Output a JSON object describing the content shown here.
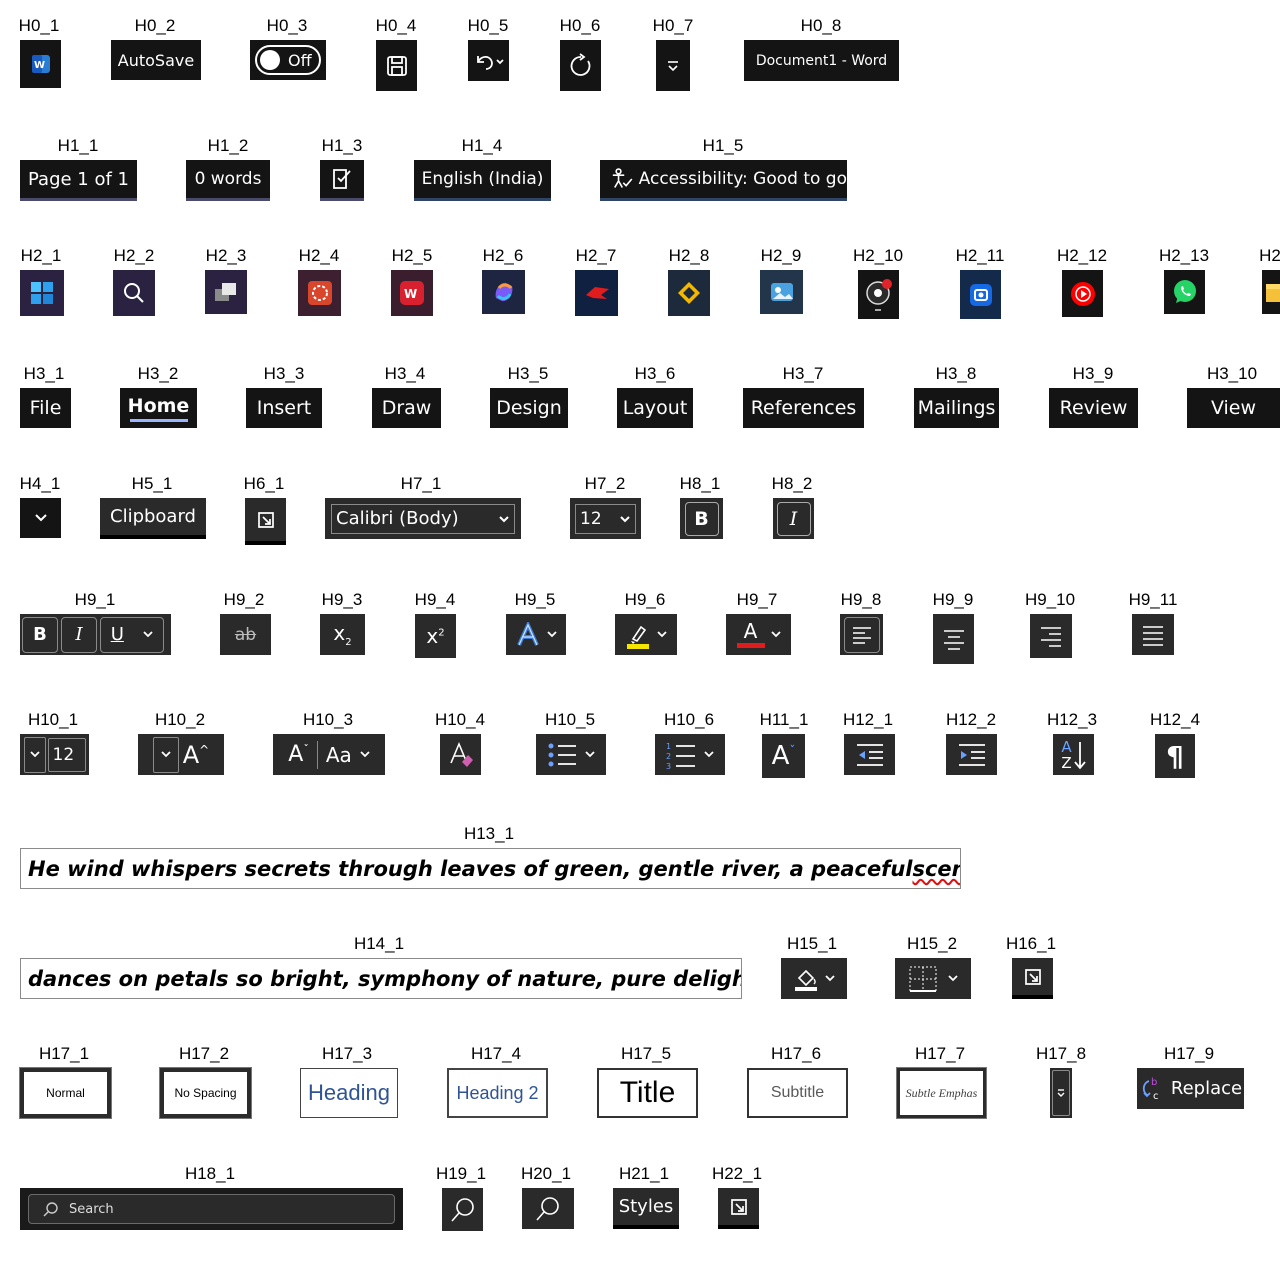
{
  "captions": {
    "H0_1": "H0_1",
    "H0_2": "H0_2",
    "H0_3": "H0_3",
    "H0_4": "H0_4",
    "H0_5": "H0_5",
    "H0_6": "H0_6",
    "H0_7": "H0_7",
    "H0_8": "H0_8",
    "H1_1": "H1_1",
    "H1_2": "H1_2",
    "H1_3": "H1_3",
    "H1_4": "H1_4",
    "H1_5": "H1_5",
    "H2_1": "H2_1",
    "H2_2": "H2_2",
    "H2_3": "H2_3",
    "H2_4": "H2_4",
    "H2_5": "H2_5",
    "H2_6": "H2_6",
    "H2_7": "H2_7",
    "H2_8": "H2_8",
    "H2_9": "H2_9",
    "H2_10": "H2_10",
    "H2_11": "H2_11",
    "H2_12": "H2_12",
    "H2_13": "H2_13",
    "H2_14": "H2",
    "H3_1": "H3_1",
    "H3_2": "H3_2",
    "H3_3": "H3_3",
    "H3_4": "H3_4",
    "H3_5": "H3_5",
    "H3_6": "H3_6",
    "H3_7": "H3_7",
    "H3_8": "H3_8",
    "H3_9": "H3_9",
    "H3_10": "H3_10",
    "H4_1": "H4_1",
    "H5_1": "H5_1",
    "H6_1": "H6_1",
    "H7_1": "H7_1",
    "H7_2": "H7_2",
    "H8_1": "H8_1",
    "H8_2": "H8_2",
    "H9_1": "H9_1",
    "H9_2": "H9_2",
    "H9_3": "H9_3",
    "H9_4": "H9_4",
    "H9_5": "H9_5",
    "H9_6": "H9_6",
    "H9_7": "H9_7",
    "H9_8": "H9_8",
    "H9_9": "H9_9",
    "H9_10": "H9_10",
    "H9_11": "H9_11",
    "H10_1": "H10_1",
    "H10_2": "H10_2",
    "H10_3": "H10_3",
    "H10_4": "H10_4",
    "H10_5": "H10_5",
    "H10_6": "H10_6",
    "H11_1": "H11_1",
    "H12_1": "H12_1",
    "H12_2": "H12_2",
    "H12_3": "H12_3",
    "H12_4": "H12_4",
    "H13_1": "H13_1",
    "H14_1": "H14_1",
    "H15_1": "H15_1",
    "H15_2": "H15_2",
    "H16_1": "H16_1",
    "H17_1": "H17_1",
    "H17_2": "H17_2",
    "H17_3": "H17_3",
    "H17_4": "H17_4",
    "H17_5": "H17_5",
    "H17_6": "H17_6",
    "H17_7": "H17_7",
    "H17_8": "H17_8",
    "H17_9": "H17_9",
    "H18_1": "H18_1",
    "H19_1": "H19_1",
    "H20_1": "H20_1",
    "H21_1": "H21_1",
    "H22_1": "H22_1"
  },
  "titlebar": {
    "autosave_label": "AutoSave",
    "toggle_state": "Off",
    "document_title": "Document1  -  Word"
  },
  "statusbar": {
    "page": "Page 1 of 1",
    "words": "0 words",
    "language": "English (India)",
    "accessibility": "Accessibility: Good to go"
  },
  "tabs": [
    "File",
    "Home",
    "Insert",
    "Draw",
    "Design",
    "Layout",
    "References",
    "Mailings",
    "Review",
    "View"
  ],
  "ribbon": {
    "clipboard_label": "Clipboard",
    "font_name": "Calibri (Body)",
    "font_size": "12",
    "font_size_small": "12",
    "bold_glyph": "B",
    "italic_glyph": "I",
    "underline_glyph": "U",
    "strike_glyph": "ab",
    "subscript_glyph": "x",
    "subscript_index": "2",
    "superscript_glyph": "x",
    "superscript_index": "2",
    "font_color_glyph": "A",
    "grow_glyph": "A",
    "case_glyph": "Aa",
    "pilcrow": "¶",
    "sort_a": "A",
    "sort_z": "Z"
  },
  "colors": {
    "highlight": "#f5e600",
    "font_color": "#e11c1c",
    "text_effect": "#3a7bd5",
    "accent_underline": "#9ab6ff"
  },
  "document": {
    "line1": "He wind whispers secrets through leaves of green, gentle river, a peaceful ",
    "line1_misspelled": "scene.unlight",
    "line2": "dances on petals so bright, symphony of nature, pure delight."
  },
  "styles": [
    "Normal",
    "No Spacing",
    "Heading",
    "Heading 2",
    "Title",
    "Subtitle",
    "Subtle Emphas"
  ],
  "replace_label": "Replace",
  "search_placeholder": "Search",
  "styles_label": "Styles",
  "icons": {
    "taskbar": [
      "windows-start-icon",
      "search-icon",
      "task-view-icon",
      "app-red-icon",
      "office-icon",
      "copilot-icon",
      "game-icon",
      "app-diamond-icon",
      "photos-icon",
      "obs-icon",
      "screen-capture-icon",
      "youtube-music-icon",
      "whatsapp-icon",
      "file-explorer-icon"
    ]
  }
}
